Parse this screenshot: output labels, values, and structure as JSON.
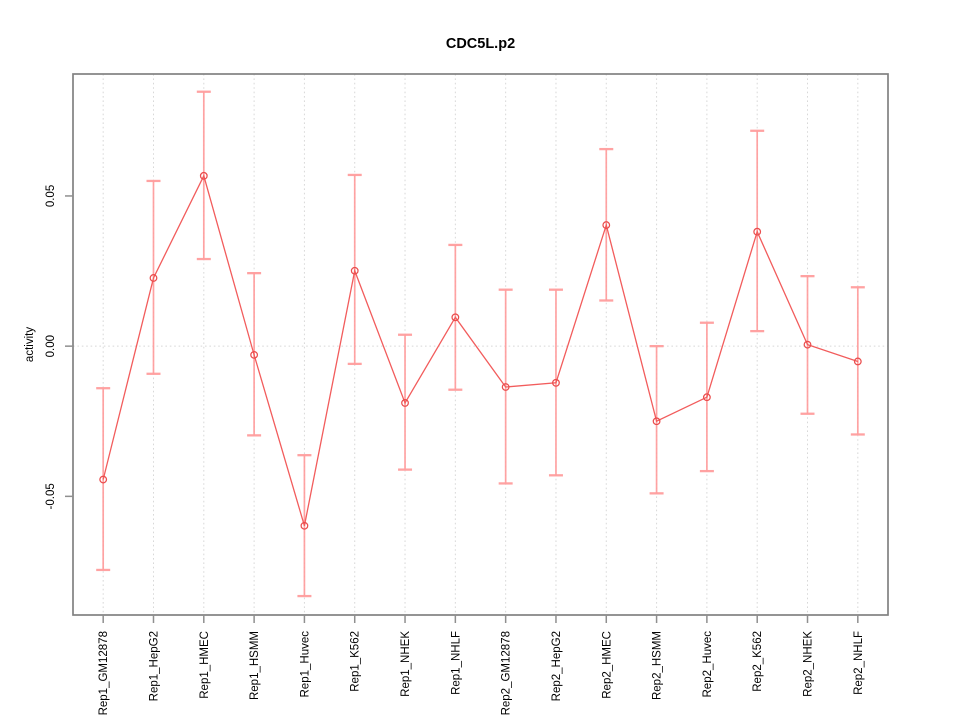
{
  "figure": {
    "title": "CDC5L.p2",
    "ylabel": "activity",
    "xlabel": ""
  },
  "colors": {
    "series_line": "#f25c5c",
    "whisker": "#ff9a9a",
    "whisker_cap": "#ff9e9e",
    "marker_stroke": "#ea4d4d",
    "grid": "#d8d8d8",
    "box": "#818181",
    "tick": "#8f8f8f",
    "text": "#000000",
    "background": "#ffffff"
  },
  "chart_data": {
    "type": "line",
    "subtype": "point-estimates-with-error-bars",
    "title": "CDC5L.p2",
    "xlabel": "",
    "ylabel": "activity",
    "legend_position": "none",
    "marker": "open-circle",
    "grid": {
      "vertical_per_category": true,
      "horizontal_at_zero": true,
      "style": "dotted"
    },
    "ylim": [
      -0.0895,
      0.0906
    ],
    "yticks": [
      {
        "value": -0.05,
        "label": "-0.05"
      },
      {
        "value": 0.0,
        "label": "0.00"
      },
      {
        "value": 0.05,
        "label": "0.05"
      }
    ],
    "categories": [
      "Rep1_GM12878",
      "Rep1_HepG2",
      "Rep1_HMEC",
      "Rep1_HSMM",
      "Rep1_Huvec",
      "Rep1_K562",
      "Rep1_NHEK",
      "Rep1_NHLF",
      "Rep2_GM12878",
      "Rep2_HepG2",
      "Rep2_HMEC",
      "Rep2_HSMM",
      "Rep2_Huvec",
      "Rep2_K562",
      "Rep2_NHEK",
      "Rep2_NHLF"
    ],
    "series": [
      {
        "name": "activity",
        "values": [
          -0.0444,
          0.0227,
          0.0567,
          -0.0029,
          -0.0598,
          0.0251,
          -0.0189,
          0.0096,
          -0.0136,
          -0.0122,
          0.0403,
          -0.025,
          -0.017,
          0.0381,
          0.0005,
          -0.0051
        ],
        "error_low": [
          -0.0745,
          -0.0092,
          0.029,
          -0.0297,
          -0.0832,
          -0.0059,
          -0.0411,
          -0.0145,
          -0.0457,
          -0.043,
          0.0152,
          -0.049,
          -0.0416,
          0.005,
          -0.0225,
          -0.0294
        ],
        "error_high": [
          -0.014,
          0.055,
          0.0847,
          0.0243,
          -0.0363,
          0.057,
          0.0038,
          0.0337,
          0.0188,
          0.0188,
          0.0656,
          0.0,
          0.0078,
          0.0717,
          0.0233,
          0.0196
        ]
      }
    ]
  }
}
